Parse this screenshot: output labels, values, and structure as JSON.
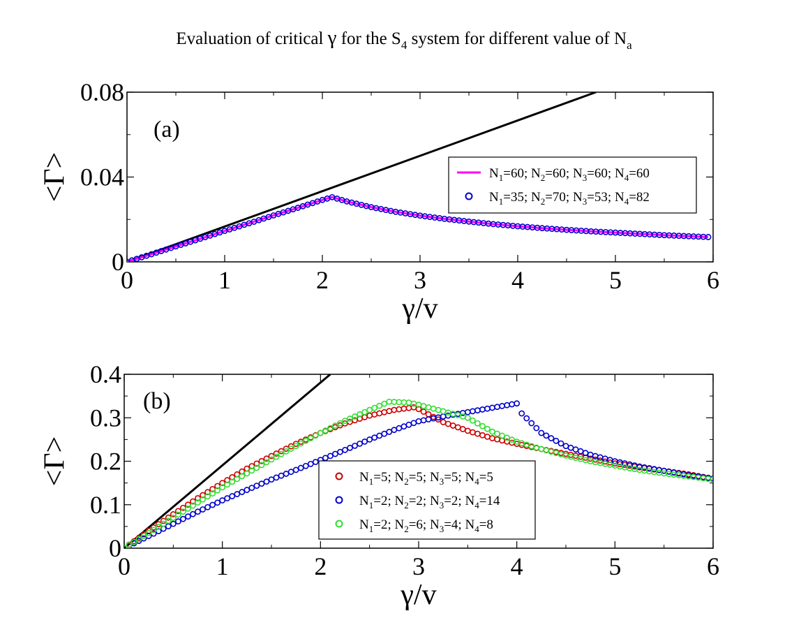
{
  "figure": {
    "title_parts": {
      "pre": "Evaluation of critical ",
      "gamma": "γ",
      "mid": " for the S",
      "sub": "4",
      "post": " system for different value of N",
      "sub2": "a"
    }
  },
  "chart_data": [
    {
      "type": "scatter",
      "panel_label": "(a)",
      "xlabel": "γ/v",
      "ylabel": "<Γ>",
      "xlim": [
        0,
        6
      ],
      "ylim": [
        0,
        0.08
      ],
      "xticks": [
        0,
        1,
        2,
        3,
        4,
        5,
        6
      ],
      "xtick_labels": [
        "0",
        "1",
        "2",
        "3",
        "4",
        "5",
        "6"
      ],
      "yticks": [
        0,
        0.04,
        0.08
      ],
      "ytick_labels": [
        "0",
        "0.04",
        "0.08"
      ],
      "legend_position": "center-right",
      "reference_line": {
        "x": [
          0,
          4.8
        ],
        "y": [
          0,
          0.08
        ],
        "color": "#000000"
      },
      "series": [
        {
          "name": "N1=60; N2=60; N3=60; N4=60",
          "label_parts": [
            [
              "N",
              "1",
              "=60; "
            ],
            [
              "N",
              "2",
              "=60; "
            ],
            [
              "N",
              "3",
              "=60; "
            ],
            [
              "N",
              "4",
              "=60"
            ]
          ],
          "marker": "line",
          "color": "#ff00ff",
          "x": [
            0,
            0.25,
            0.5,
            0.75,
            1.0,
            1.25,
            1.5,
            1.75,
            2.0,
            2.1,
            2.25,
            2.5,
            2.75,
            3.0,
            3.25,
            3.5,
            3.75,
            4.0,
            4.25,
            4.5,
            4.75,
            5.0,
            5.25,
            5.5,
            5.75,
            5.95
          ],
          "y": [
            0,
            0.0036,
            0.0073,
            0.0109,
            0.0146,
            0.0182,
            0.0219,
            0.0255,
            0.0292,
            0.0305,
            0.0285,
            0.0258,
            0.0236,
            0.0218,
            0.0203,
            0.019,
            0.0178,
            0.0168,
            0.0159,
            0.0151,
            0.0144,
            0.0138,
            0.0132,
            0.0126,
            0.0121,
            0.0117
          ]
        },
        {
          "name": "N1=35; N2=70; N3=53; N4=82",
          "label_parts": [
            [
              "N",
              "1",
              "=35; "
            ],
            [
              "N",
              "2",
              "=70; "
            ],
            [
              "N",
              "3",
              "=53; "
            ],
            [
              "N",
              "4",
              "=82"
            ]
          ],
          "marker": "circle",
          "color": "#0000cc",
          "x": [
            0,
            0.25,
            0.5,
            0.75,
            1.0,
            1.25,
            1.5,
            1.75,
            2.0,
            2.1,
            2.25,
            2.5,
            2.75,
            3.0,
            3.25,
            3.5,
            3.75,
            4.0,
            4.25,
            4.5,
            4.75,
            5.0,
            5.25,
            5.5,
            5.75,
            5.95
          ],
          "y": [
            0,
            0.0036,
            0.0073,
            0.0109,
            0.0146,
            0.0182,
            0.0219,
            0.0255,
            0.0292,
            0.0305,
            0.0285,
            0.0258,
            0.0236,
            0.0218,
            0.0203,
            0.019,
            0.0178,
            0.0168,
            0.0159,
            0.0151,
            0.0144,
            0.0138,
            0.0132,
            0.0126,
            0.0121,
            0.0117
          ]
        }
      ]
    },
    {
      "type": "scatter",
      "panel_label": "(b)",
      "xlabel": "γ/v",
      "ylabel": "<Γ>",
      "xlim": [
        0,
        6
      ],
      "ylim": [
        0,
        0.4
      ],
      "xticks": [
        0,
        1,
        2,
        3,
        4,
        5,
        6
      ],
      "xtick_labels": [
        "0",
        "1",
        "2",
        "3",
        "4",
        "5",
        "6"
      ],
      "yticks": [
        0,
        0.1,
        0.2,
        0.3,
        0.4
      ],
      "ytick_labels": [
        "0",
        "0.1",
        "0.2",
        "0.3",
        "0.4"
      ],
      "legend_position": "lower-center",
      "reference_line": {
        "x": [
          0,
          2.1
        ],
        "y": [
          0,
          0.4
        ],
        "color": "#000000"
      },
      "series": [
        {
          "name": "N1=5; N2=5; N3=5; N4=5",
          "label_parts": [
            [
              "N",
              "1",
              "=5; "
            ],
            [
              "N",
              "2",
              "=5; "
            ],
            [
              "N",
              "3",
              "=5; "
            ],
            [
              "N",
              "4",
              "=5"
            ]
          ],
          "marker": "circle",
          "color": "#cc0000",
          "x": [
            0,
            0.25,
            0.5,
            0.75,
            1.0,
            1.25,
            1.5,
            1.75,
            2.0,
            2.25,
            2.5,
            2.75,
            2.95,
            3.0,
            3.25,
            3.5,
            3.75,
            4.0,
            4.25,
            4.5,
            4.75,
            5.0,
            5.25,
            5.5,
            5.75,
            6.0
          ],
          "y": [
            0,
            0.04,
            0.078,
            0.115,
            0.15,
            0.183,
            0.212,
            0.24,
            0.265,
            0.287,
            0.305,
            0.318,
            0.324,
            0.32,
            0.29,
            0.27,
            0.253,
            0.24,
            0.228,
            0.217,
            0.206,
            0.195,
            0.186,
            0.178,
            0.17,
            0.16
          ]
        },
        {
          "name": "N1=2; N2=2; N3=2; N4=14",
          "label_parts": [
            [
              "N",
              "1",
              "=2; "
            ],
            [
              "N",
              "2",
              "=2; "
            ],
            [
              "N",
              "3",
              "=2; "
            ],
            [
              "N",
              "4",
              "=14"
            ]
          ],
          "marker": "circle",
          "color": "#0000cc",
          "x": [
            0,
            0.25,
            0.5,
            0.75,
            1.0,
            1.25,
            1.5,
            1.75,
            2.0,
            2.25,
            2.5,
            2.75,
            3.0,
            3.25,
            3.5,
            3.75,
            4.0,
            4.05,
            4.25,
            4.5,
            4.75,
            5.0,
            5.25,
            5.5,
            5.75,
            6.0
          ],
          "y": [
            0,
            0.028,
            0.056,
            0.084,
            0.11,
            0.134,
            0.158,
            0.18,
            0.203,
            0.226,
            0.25,
            0.272,
            0.292,
            0.303,
            0.313,
            0.323,
            0.333,
            0.31,
            0.265,
            0.235,
            0.215,
            0.2,
            0.188,
            0.178,
            0.168,
            0.16
          ]
        },
        {
          "name": "N1=2; N2=6; N3=4; N4=8",
          "label_parts": [
            [
              "N",
              "1",
              "=2; "
            ],
            [
              "N",
              "2",
              "=6; "
            ],
            [
              "N",
              "3",
              "=4; "
            ],
            [
              "N",
              "4",
              "=8"
            ]
          ],
          "marker": "circle",
          "color": "#33dd33",
          "x": [
            0,
            0.25,
            0.5,
            0.75,
            1.0,
            1.25,
            1.5,
            1.75,
            2.0,
            2.25,
            2.5,
            2.7,
            2.9,
            3.0,
            3.25,
            3.5,
            3.75,
            4.0,
            4.25,
            4.5,
            4.75,
            5.0,
            5.25,
            5.5,
            5.75,
            6.0
          ],
          "y": [
            0,
            0.035,
            0.07,
            0.105,
            0.14,
            0.172,
            0.204,
            0.235,
            0.265,
            0.293,
            0.318,
            0.337,
            0.335,
            0.33,
            0.315,
            0.3,
            0.268,
            0.245,
            0.228,
            0.213,
            0.2,
            0.19,
            0.18,
            0.172,
            0.165,
            0.158
          ]
        }
      ]
    }
  ]
}
